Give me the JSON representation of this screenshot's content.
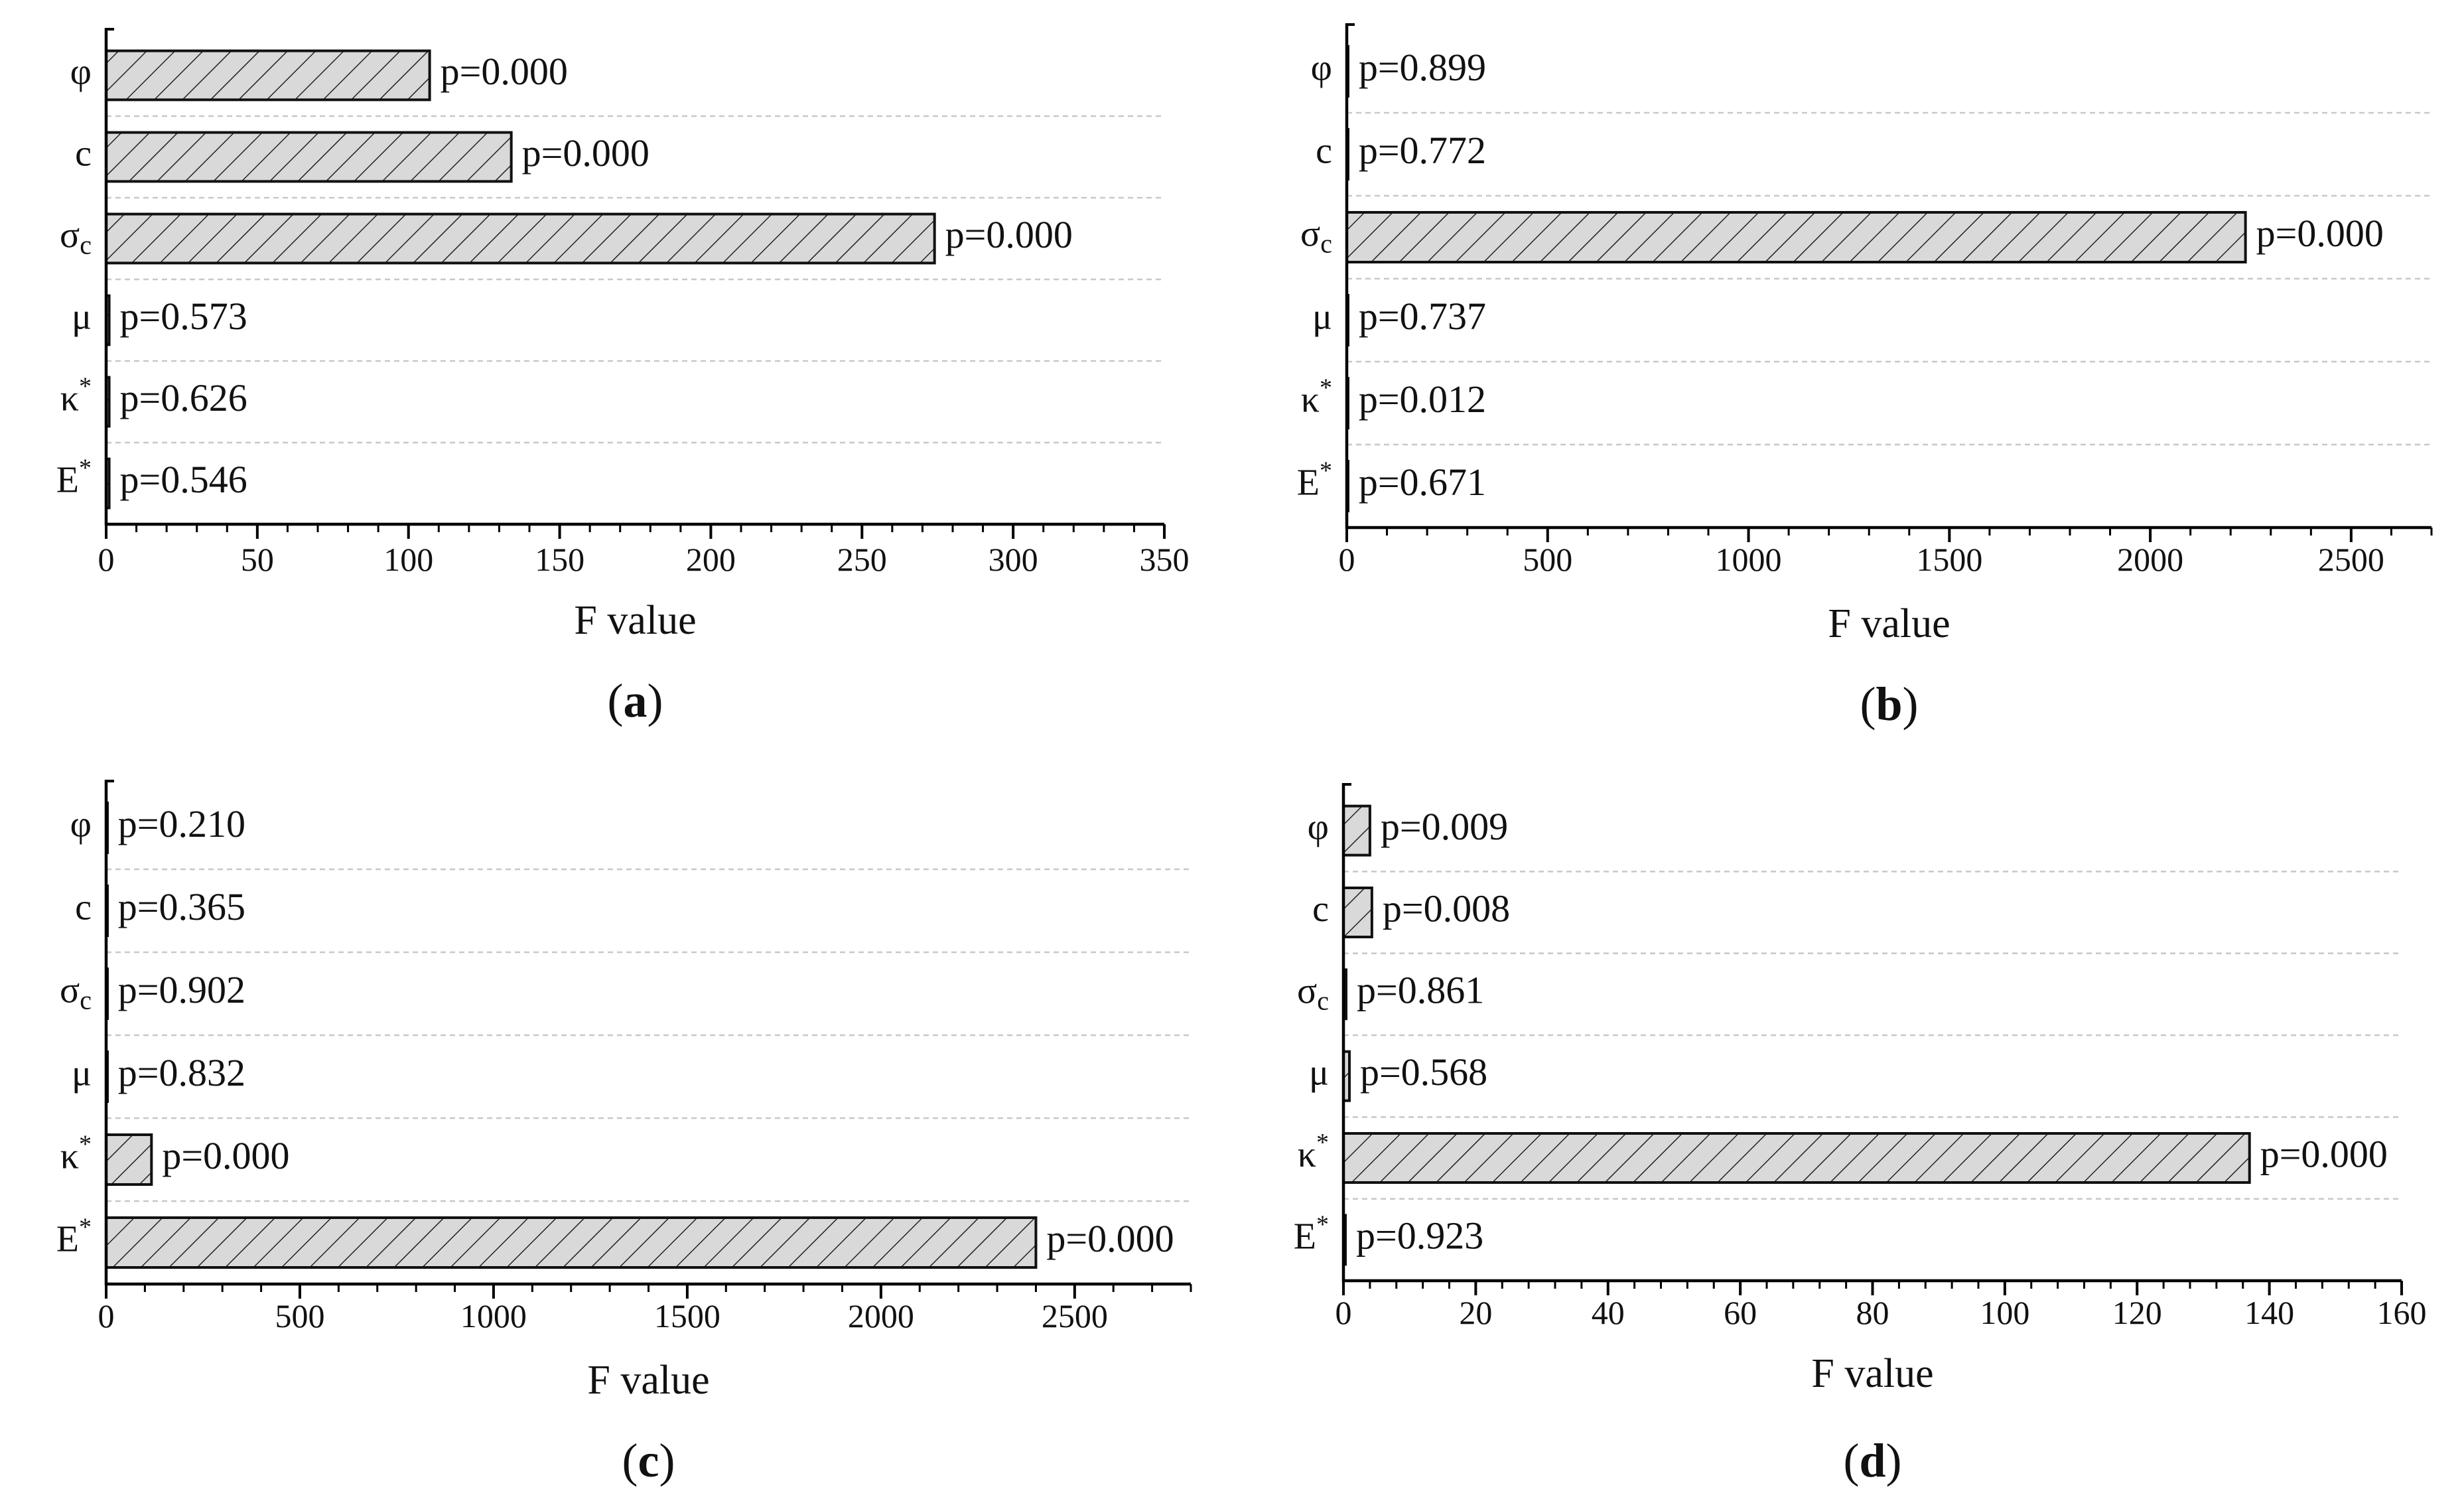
{
  "chart_data": [
    {
      "type": "bar",
      "orientation": "horizontal",
      "panel_label": "a",
      "categories": [
        "φ",
        "c",
        "σ_c",
        "μ",
        "κ*",
        "E*"
      ],
      "values": [
        107,
        134,
        274,
        1,
        1,
        1
      ],
      "annotations": [
        "p=0.000",
        "p=0.000",
        "p=0.000",
        "p=0.573",
        "p=0.626",
        "p=0.546"
      ],
      "xlabel": "F value",
      "xlim": [
        0,
        350
      ],
      "xticks": [
        0,
        50,
        100,
        150,
        200,
        250,
        300,
        350
      ],
      "grid": "dashed horizontal"
    },
    {
      "type": "bar",
      "orientation": "horizontal",
      "panel_label": "b",
      "categories": [
        "φ",
        "c",
        "σ_c",
        "μ",
        "κ*",
        "E*"
      ],
      "values": [
        3,
        3,
        2237,
        3,
        3,
        3
      ],
      "annotations": [
        "p=0.899",
        "p=0.772",
        "p=0.000",
        "p=0.737",
        "p=0.012",
        "p=0.671"
      ],
      "xlabel": "F value",
      "xlim": [
        0,
        2700
      ],
      "xticks": [
        0,
        500,
        1000,
        1500,
        2000,
        2500
      ],
      "grid": "dashed horizontal"
    },
    {
      "type": "bar",
      "orientation": "horizontal",
      "panel_label": "c",
      "categories": [
        "φ",
        "c",
        "σ_c",
        "μ",
        "κ*",
        "E*"
      ],
      "values": [
        3,
        3,
        3,
        3,
        117,
        2400
      ],
      "annotations": [
        "p=0.210",
        "p=0.365",
        "p=0.902",
        "p=0.832",
        "p=0.000",
        "p=0.000"
      ],
      "xlabel": "F value",
      "xlim": [
        0,
        2800
      ],
      "xticks": [
        0,
        500,
        1000,
        1500,
        2000,
        2500
      ],
      "grid": "dashed horizontal"
    },
    {
      "type": "bar",
      "orientation": "horizontal",
      "panel_label": "d",
      "categories": [
        "φ",
        "c",
        "σ_c",
        "μ",
        "κ*",
        "E*"
      ],
      "values": [
        4,
        4.3,
        0.4,
        0.9,
        137,
        0.3
      ],
      "annotations": [
        "p=0.009",
        "p=0.008",
        "p=0.861",
        "p=0.568",
        "p=0.000",
        "p=0.923"
      ],
      "xlabel": "F value",
      "xlim": [
        0,
        160
      ],
      "xticks": [
        0,
        20,
        40,
        60,
        80,
        100,
        120,
        140,
        160
      ],
      "grid": "dashed horizontal"
    }
  ]
}
